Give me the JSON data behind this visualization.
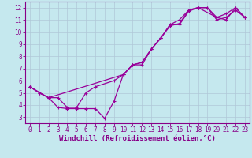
{
  "xlabel": "Windchill (Refroidissement éolien,°C)",
  "xlim": [
    -0.5,
    23.5
  ],
  "ylim": [
    2.5,
    12.5
  ],
  "xticks": [
    0,
    1,
    2,
    3,
    4,
    5,
    6,
    7,
    8,
    9,
    10,
    11,
    12,
    13,
    14,
    15,
    16,
    17,
    18,
    19,
    20,
    21,
    22,
    23
  ],
  "yticks": [
    3,
    4,
    5,
    6,
    7,
    8,
    9,
    10,
    11,
    12
  ],
  "background_color": "#c5e8ee",
  "line_color": "#990099",
  "grid_color": "#b0c8d8",
  "lines": [
    {
      "x": [
        0,
        1,
        2,
        3,
        4,
        5,
        6,
        7,
        8,
        9,
        10,
        11,
        12,
        13,
        14,
        15,
        16,
        17,
        18,
        19,
        20,
        21,
        22,
        23
      ],
      "y": [
        5.5,
        5.0,
        4.6,
        3.8,
        3.7,
        3.7,
        3.7,
        3.7,
        2.9,
        4.3,
        6.5,
        7.3,
        7.3,
        8.6,
        9.5,
        10.6,
        10.6,
        11.7,
        12.0,
        12.0,
        11.0,
        11.2,
        11.8,
        11.2
      ]
    },
    {
      "x": [
        0,
        2,
        10,
        11,
        12,
        13,
        14,
        15,
        16,
        17,
        18,
        20,
        21,
        22,
        23
      ],
      "y": [
        5.5,
        4.6,
        6.5,
        7.3,
        7.5,
        8.6,
        9.5,
        10.6,
        11.0,
        11.8,
        12.0,
        11.2,
        11.5,
        12.0,
        11.2
      ]
    },
    {
      "x": [
        0,
        1,
        2,
        3,
        4,
        5,
        6,
        7,
        9,
        10,
        11,
        12,
        13,
        14,
        15,
        16,
        17,
        18,
        19,
        20,
        21,
        22,
        23
      ],
      "y": [
        5.5,
        5.0,
        4.6,
        4.6,
        3.8,
        3.8,
        5.0,
        5.5,
        6.0,
        6.5,
        7.3,
        7.5,
        8.6,
        9.5,
        10.5,
        10.7,
        11.8,
        12.0,
        12.0,
        11.2,
        11.0,
        12.0,
        11.2
      ]
    }
  ],
  "tick_font_size": 5.5,
  "xlabel_font_size": 6.5
}
